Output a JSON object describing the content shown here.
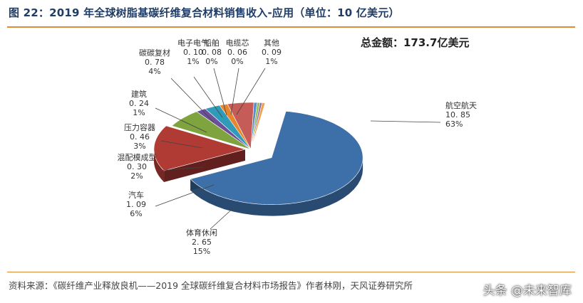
{
  "figure": {
    "title": "图 22：2019 年全球树脂基碳纤维复合材料销售收入-应用（单位：10 亿美元）",
    "total": "总金额：173.7亿美元",
    "source": "资料来源：《碳纤维产业释放良机——2019 全球碳纤维复合材料市场报告》作者林刚，天风证券研究所",
    "watermark": "头条 @未来智库"
  },
  "chart_data": {
    "type": "pie",
    "title": "",
    "unit": "10 亿美元",
    "slices": [
      {
        "name": "航空航天",
        "value": 10.85,
        "percent": "63%",
        "color": "#3d6fa8"
      },
      {
        "name": "体育休闲",
        "value": 2.65,
        "percent": "15%",
        "color": "#b03a34"
      },
      {
        "name": "汽车",
        "value": 1.09,
        "percent": "6%",
        "color": "#7ea33f"
      },
      {
        "name": "混配模成型",
        "value": 0.3,
        "percent": "2%",
        "color": "#6b4f98"
      },
      {
        "name": "压力容器",
        "value": 0.46,
        "percent": "3%",
        "color": "#2f9bb8"
      },
      {
        "name": "建筑",
        "value": 0.24,
        "percent": "1%",
        "color": "#e8862e"
      },
      {
        "name": "碳碳复材",
        "value": 0.78,
        "percent": "4%",
        "color": "#c65c57"
      },
      {
        "name": "电子电气",
        "value": 0.1,
        "percent": "1%",
        "color": "#5a8fc9"
      },
      {
        "name": "船舶",
        "value": 0.08,
        "percent": "0%",
        "color": "#9bbb59"
      },
      {
        "name": "电缆芯",
        "value": 0.06,
        "percent": "0%",
        "color": "#8064a2"
      },
      {
        "name": "其他",
        "value": 0.09,
        "percent": "1%",
        "color": "#f2a04d"
      }
    ],
    "value_labels": [
      "10. 85",
      "2. 65",
      "1. 09",
      "0. 30",
      "0. 46",
      "0. 24",
      "0. 78",
      "0. 10",
      "0. 08",
      "0. 06",
      "0. 09"
    ],
    "legend": "none"
  }
}
